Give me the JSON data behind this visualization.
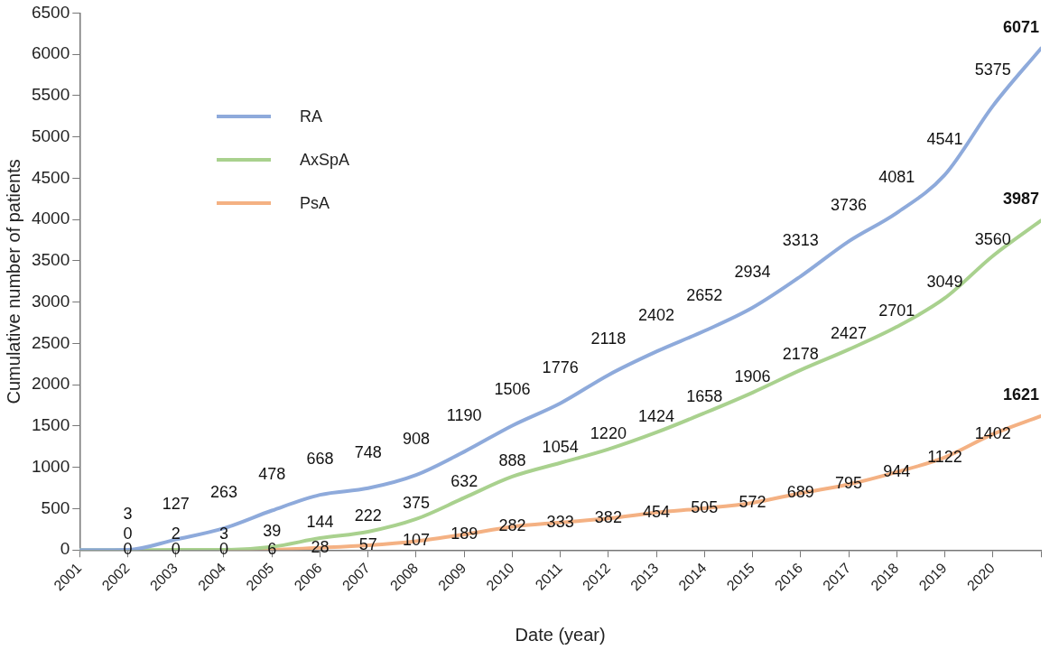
{
  "chart_data": {
    "type": "line",
    "xlabel": "Date (year)",
    "ylabel": "Cumulative number of patients",
    "x": [
      2001,
      2002,
      2003,
      2004,
      2005,
      2006,
      2007,
      2008,
      2009,
      2010,
      2011,
      2012,
      2013,
      2014,
      2015,
      2016,
      2017,
      2018,
      2019,
      2020,
      2021
    ],
    "series": [
      {
        "name": "RA",
        "color": "#8eaadb",
        "values": [
          0,
          3,
          127,
          263,
          478,
          668,
          748,
          908,
          1190,
          1506,
          1776,
          2118,
          2402,
          2652,
          2934,
          3313,
          3736,
          4081,
          4541,
          5375,
          6071
        ],
        "value_labels": [
          null,
          "3",
          "127",
          "263",
          "478",
          "668",
          "748",
          "908",
          "1190",
          "1506",
          "1776",
          "2118",
          "2402",
          "2652",
          "2934",
          "3313",
          "3736",
          "4081",
          "4541",
          "5375",
          "6071"
        ]
      },
      {
        "name": "AxSpA",
        "color": "#a9d18e",
        "values": [
          0,
          0,
          2,
          3,
          39,
          144,
          222,
          375,
          632,
          888,
          1054,
          1220,
          1424,
          1658,
          1906,
          2178,
          2427,
          2701,
          3049,
          3560,
          3987
        ],
        "value_labels": [
          null,
          "0",
          "2",
          "3",
          "39",
          "144",
          "222",
          "375",
          "632",
          "888",
          "1054",
          "1220",
          "1424",
          "1658",
          "1906",
          "2178",
          "2427",
          "2701",
          "3049",
          "3560",
          "3987"
        ]
      },
      {
        "name": "PsA",
        "color": "#f4b183",
        "values": [
          null,
          null,
          null,
          0,
          6,
          28,
          57,
          107,
          189,
          282,
          333,
          382,
          454,
          505,
          572,
          689,
          795,
          944,
          1122,
          1402,
          1621
        ],
        "value_labels": [
          null,
          null,
          null,
          "0",
          "6",
          "28",
          "57",
          "107",
          "189",
          "282",
          "333",
          "382",
          "454",
          "505",
          "572",
          "689",
          "795",
          "944",
          "1122",
          "1402",
          "1621"
        ]
      }
    ],
    "xlim": [
      2001,
      2021
    ],
    "xticks": [
      2001,
      2002,
      2003,
      2004,
      2005,
      2006,
      2007,
      2008,
      2009,
      2010,
      2011,
      2012,
      2013,
      2014,
      2015,
      2016,
      2017,
      2018,
      2019,
      2020,
      {
        "value": 2021,
        "label": null
      }
    ],
    "ylim": [
      0,
      6500
    ],
    "yticks": [
      0,
      500,
      1000,
      1500,
      2000,
      2500,
      3000,
      3500,
      4000,
      4500,
      5000,
      5500,
      6000,
      6500
    ],
    "annotations": [
      {
        "text": "0",
        "x": 2002,
        "y": 0
      },
      {
        "text": "0",
        "x": 2003,
        "y": 0
      }
    ],
    "grid": false,
    "legend": "top left",
    "marker": "none",
    "line_style": "solid"
  }
}
